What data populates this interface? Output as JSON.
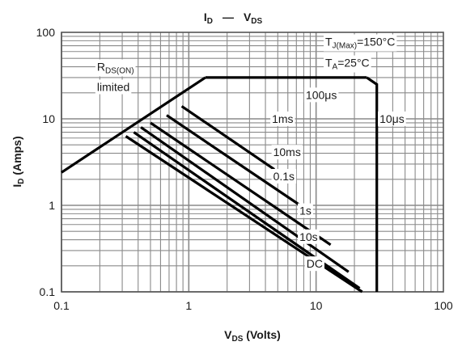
{
  "chart_data": {
    "type": "line",
    "title": {
      "main": "I",
      "sub": "D",
      "dash": "—",
      "main2": "V",
      "sub2": "DS"
    },
    "xlabel": {
      "main": "V",
      "sub": "DS",
      "rest": " (Volts)"
    },
    "ylabel": {
      "main": "I",
      "sub": "D",
      "rest": " (Amps)"
    },
    "x_scale": "log",
    "y_scale": "log",
    "xlim": [
      0.1,
      100
    ],
    "ylim": [
      0.1,
      100
    ],
    "x_ticks": [
      {
        "v": 0.1,
        "label": "0.1"
      },
      {
        "v": 1,
        "label": "1"
      },
      {
        "v": 10,
        "label": "10"
      },
      {
        "v": 100,
        "label": "100"
      }
    ],
    "y_ticks": [
      {
        "v": 0.1,
        "label": "0.1"
      },
      {
        "v": 1,
        "label": "1"
      },
      {
        "v": 10,
        "label": "10"
      },
      {
        "v": 100,
        "label": "100"
      }
    ],
    "grid": true,
    "series": [
      {
        "name": "RDS(ON) limited",
        "x": [
          0.1,
          1.35
        ],
        "y": [
          2.4,
          30
        ]
      },
      {
        "x": [
          1.35,
          25
        ],
        "y": [
          30,
          30
        ]
      },
      {
        "x": [
          25,
          30,
          30
        ],
        "y": [
          30,
          25,
          0.1
        ]
      },
      {
        "x": [
          0.88,
          4.7
        ],
        "y": [
          14,
          2.6
        ]
      },
      {
        "x": [
          0.67,
          7.5
        ],
        "y": [
          11,
          1
        ]
      },
      {
        "x": [
          0.5,
          13
        ],
        "y": [
          9,
          0.35
        ]
      },
      {
        "x": [
          0.42,
          18
        ],
        "y": [
          8,
          0.17
        ]
      },
      {
        "x": [
          0.37,
          22
        ],
        "y": [
          7,
          0.11
        ]
      },
      {
        "x": [
          0.32,
          23
        ],
        "y": [
          6.3,
          0.1
        ]
      }
    ],
    "annotations": [
      {
        "id": "tj",
        "main": "T",
        "sub": "J(Max)",
        "rest": "=150°C",
        "x": 11.8,
        "y": 70
      },
      {
        "id": "ta",
        "main": "T",
        "sub": "A",
        "rest": "=25°C",
        "x": 11.8,
        "y": 40
      },
      {
        "id": "rds",
        "main": "R",
        "sub": "DS(ON)",
        "rest": "",
        "x": 0.19,
        "y": 36
      },
      {
        "id": "lim",
        "main": "limited",
        "sub": "",
        "rest": "",
        "x": 0.19,
        "y": 21
      },
      {
        "id": "a100us",
        "main": "100μs",
        "sub": "",
        "rest": "",
        "x": 8.3,
        "y": 17
      },
      {
        "id": "a10us",
        "main": "10μs",
        "sub": "",
        "rest": "",
        "x": 31.5,
        "y": 9.0
      },
      {
        "id": "a1ms",
        "main": "1ms",
        "sub": "",
        "rest": "",
        "x": 4.5,
        "y": 9.0
      },
      {
        "id": "a10ms",
        "main": "10ms",
        "sub": "",
        "rest": "",
        "x": 4.6,
        "y": 3.7
      },
      {
        "id": "a01s",
        "main": "0.1s",
        "sub": "",
        "rest": "",
        "x": 4.6,
        "y": 1.95
      },
      {
        "id": "a1s",
        "main": "1s",
        "sub": "",
        "rest": "",
        "x": 7.4,
        "y": 0.78
      },
      {
        "id": "a10s",
        "main": "10s",
        "sub": "",
        "rest": "",
        "x": 7.4,
        "y": 0.39
      },
      {
        "id": "adc",
        "main": "DC",
        "sub": "",
        "rest": "",
        "x": 8.4,
        "y": 0.19
      }
    ]
  }
}
